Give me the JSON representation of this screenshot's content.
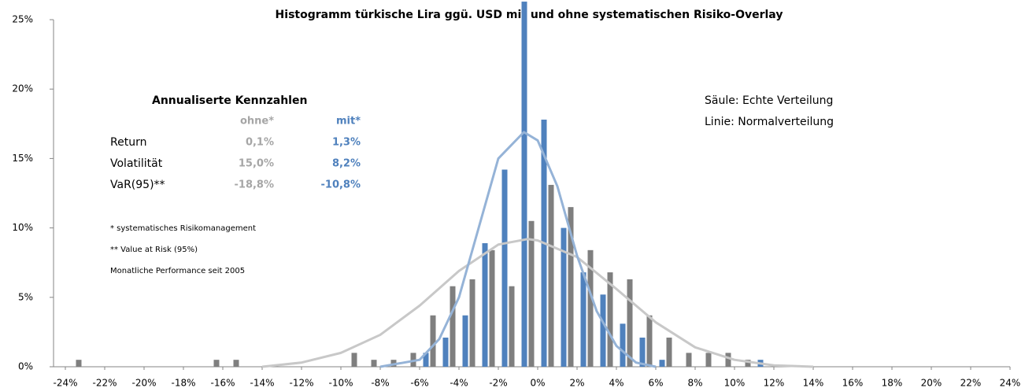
{
  "chart_data": {
    "type": "histogram",
    "title": "Histogramm türkische Lira ggü. USD mit und ohne systematischen Risiko-Overlay",
    "bins": [
      -24,
      -23,
      -22,
      -21,
      -20,
      -19,
      -18,
      -17,
      -16,
      -15,
      -14,
      -13,
      -12,
      -11,
      -10,
      -9,
      -8,
      -7,
      -6,
      -5,
      -4,
      -3,
      -2,
      -1,
      0,
      1,
      2,
      3,
      4,
      5,
      6,
      7,
      8,
      9,
      10,
      11,
      12,
      13,
      14,
      15,
      16,
      17,
      18,
      19,
      20,
      21,
      22,
      23,
      24
    ],
    "series": [
      {
        "color": "#4f81bd",
        "values": [
          0,
          0,
          0,
          0,
          0,
          0,
          0,
          0,
          0,
          0,
          0,
          0,
          0,
          0,
          0,
          0,
          0,
          0,
          1.0,
          2.1,
          3.7,
          8.9,
          14.2,
          26.3,
          17.8,
          10.0,
          6.8,
          5.2,
          3.1,
          2.1,
          0.5,
          0,
          0,
          0,
          0,
          0.5,
          0,
          0,
          0,
          0,
          0,
          0,
          0,
          0,
          0,
          0,
          0,
          0
        ]
      },
      {
        "color": "#7f7f7f",
        "values": [
          0.5,
          0,
          0,
          0,
          0,
          0,
          0,
          0.5,
          0.5,
          0,
          0,
          0,
          0,
          0,
          1.0,
          0.5,
          0.5,
          1.0,
          3.7,
          5.8,
          6.3,
          8.4,
          5.8,
          10.5,
          13.1,
          11.5,
          8.4,
          6.8,
          6.3,
          3.7,
          2.1,
          1.0,
          1.0,
          1.0,
          0.5,
          0,
          0,
          0,
          0,
          0,
          0,
          0,
          0,
          0,
          0,
          0,
          0,
          0
        ]
      }
    ],
    "lines": [
      {
        "color": "#c8c8c8",
        "x": [
          -14,
          -12,
          -10,
          -8,
          -6,
          -4,
          -2,
          -0.5,
          0,
          2,
          4,
          6,
          8,
          10,
          12,
          14
        ],
        "values": [
          0,
          0.3,
          1.0,
          2.3,
          4.4,
          6.9,
          8.8,
          9.2,
          9.1,
          7.9,
          5.6,
          3.2,
          1.4,
          0.5,
          0.1,
          0
        ]
      },
      {
        "color": "#95b3d7",
        "x": [
          -8,
          -6,
          -5,
          -4,
          -3,
          -2,
          -0.7,
          0,
          1,
          2,
          3,
          4,
          5,
          6
        ],
        "values": [
          0,
          0.5,
          2,
          5,
          10,
          15,
          16.9,
          16.3,
          13,
          8,
          4,
          1.5,
          0.3,
          0
        ]
      }
    ],
    "xlim": [
      -24,
      24
    ],
    "xticks": [
      {
        "value": -24,
        "label": "-24%"
      },
      {
        "value": -22,
        "label": "-22%"
      },
      {
        "value": -20,
        "label": "-20%"
      },
      {
        "value": -18,
        "label": "-18%"
      },
      {
        "value": -16,
        "label": "-16%"
      },
      {
        "value": -14,
        "label": "-14%"
      },
      {
        "value": -12,
        "label": "-12%"
      },
      {
        "value": -10,
        "label": "-10%"
      },
      {
        "value": -8,
        "label": "-8%"
      },
      {
        "value": -6,
        "label": "-6%"
      },
      {
        "value": -4,
        "label": "-4%"
      },
      {
        "value": -2,
        "label": "-2%"
      },
      {
        "value": 0,
        "label": "0%"
      },
      {
        "value": 2,
        "label": "2%"
      },
      {
        "value": 4,
        "label": "4%"
      },
      {
        "value": 6,
        "label": "6%"
      },
      {
        "value": 8,
        "label": "8%"
      },
      {
        "value": 10,
        "label": "10%"
      },
      {
        "value": 12,
        "label": "12%"
      },
      {
        "value": 14,
        "label": "14%"
      },
      {
        "value": 16,
        "label": "16%"
      },
      {
        "value": 18,
        "label": "18%"
      },
      {
        "value": 20,
        "label": "20%"
      },
      {
        "value": 22,
        "label": "22%"
      },
      {
        "value": 24,
        "label": "24%"
      }
    ],
    "ylim": [
      0,
      25
    ],
    "yticks": [
      {
        "value": 0,
        "label": "0%"
      },
      {
        "value": 5,
        "label": "5%"
      },
      {
        "value": 10,
        "label": "10%"
      },
      {
        "value": 15,
        "label": "15%"
      },
      {
        "value": 20,
        "label": "20%"
      },
      {
        "value": 25,
        "label": "25%"
      }
    ],
    "grid": false,
    "table": {
      "title": "Annualiserte Kennzahlen",
      "columns": [
        "ohne*",
        "mit*"
      ],
      "rows": [
        {
          "label": "Return",
          "cells": [
            "0,1%",
            "1,3%"
          ]
        },
        {
          "label": "Volatilität",
          "cells": [
            "15,0%",
            "8,2%"
          ]
        },
        {
          "label": "VaR(95)**",
          "cells": [
            "-18,8%",
            "-10,8%"
          ]
        }
      ]
    },
    "footnotes": [
      "* systematisches Risikomanagement",
      "** Value at Risk (95%)",
      "Monatliche Performance seit 2005"
    ],
    "notes": [
      "Säule: Echte Verteilung",
      "Linie: Normalverteilung"
    ]
  }
}
